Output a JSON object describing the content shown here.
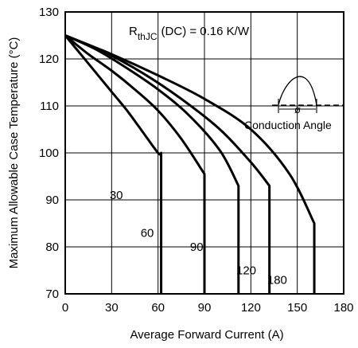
{
  "chart_data": {
    "type": "line",
    "xlabel": "Average Forward Current (A)",
    "ylabel": "Maximum Allowable Case Temperature (°C)",
    "xlim": [
      0,
      180
    ],
    "ylim": [
      70,
      130
    ],
    "xticks": [
      0,
      30,
      60,
      90,
      120,
      150,
      180
    ],
    "yticks": [
      70,
      80,
      90,
      100,
      110,
      120,
      130
    ],
    "grid": true,
    "annotation": {
      "rth_main": "R",
      "rth_sub": "thJC",
      "rth_rest": "(DC) = 0.16 K/W",
      "phi": "ø",
      "conduction": "Conduction Angle"
    },
    "series": [
      {
        "name": "30",
        "label_at": [
          33,
          91
        ],
        "x": [
          0,
          10,
          20,
          30,
          40,
          50,
          60,
          62,
          62
        ],
        "y": [
          125,
          121,
          117,
          113,
          109,
          104.5,
          100,
          100,
          70
        ]
      },
      {
        "name": "60",
        "label_at": [
          53,
          83
        ],
        "x": [
          0,
          15,
          30,
          45,
          60,
          75,
          90,
          90
        ],
        "y": [
          125,
          121,
          117.5,
          113.5,
          109,
          103,
          95.5,
          70
        ]
      },
      {
        "name": "90",
        "label_at": [
          85,
          80
        ],
        "x": [
          0,
          20,
          40,
          60,
          80,
          100,
          112,
          112
        ],
        "y": [
          125,
          122,
          118,
          113.5,
          108,
          100.5,
          93,
          70
        ]
      },
      {
        "name": "120",
        "label_at": [
          117,
          75
        ],
        "x": [
          0,
          25,
          50,
          75,
          100,
          120,
          132,
          132
        ],
        "y": [
          125,
          121.5,
          117,
          111.5,
          105,
          98,
          93,
          70
        ]
      },
      {
        "name": "180",
        "label_at": [
          137,
          73
        ],
        "x": [
          0,
          30,
          60,
          90,
          120,
          145,
          161,
          161
        ],
        "y": [
          125,
          121,
          116.5,
          111.5,
          105,
          95.5,
          85,
          70
        ]
      }
    ]
  }
}
